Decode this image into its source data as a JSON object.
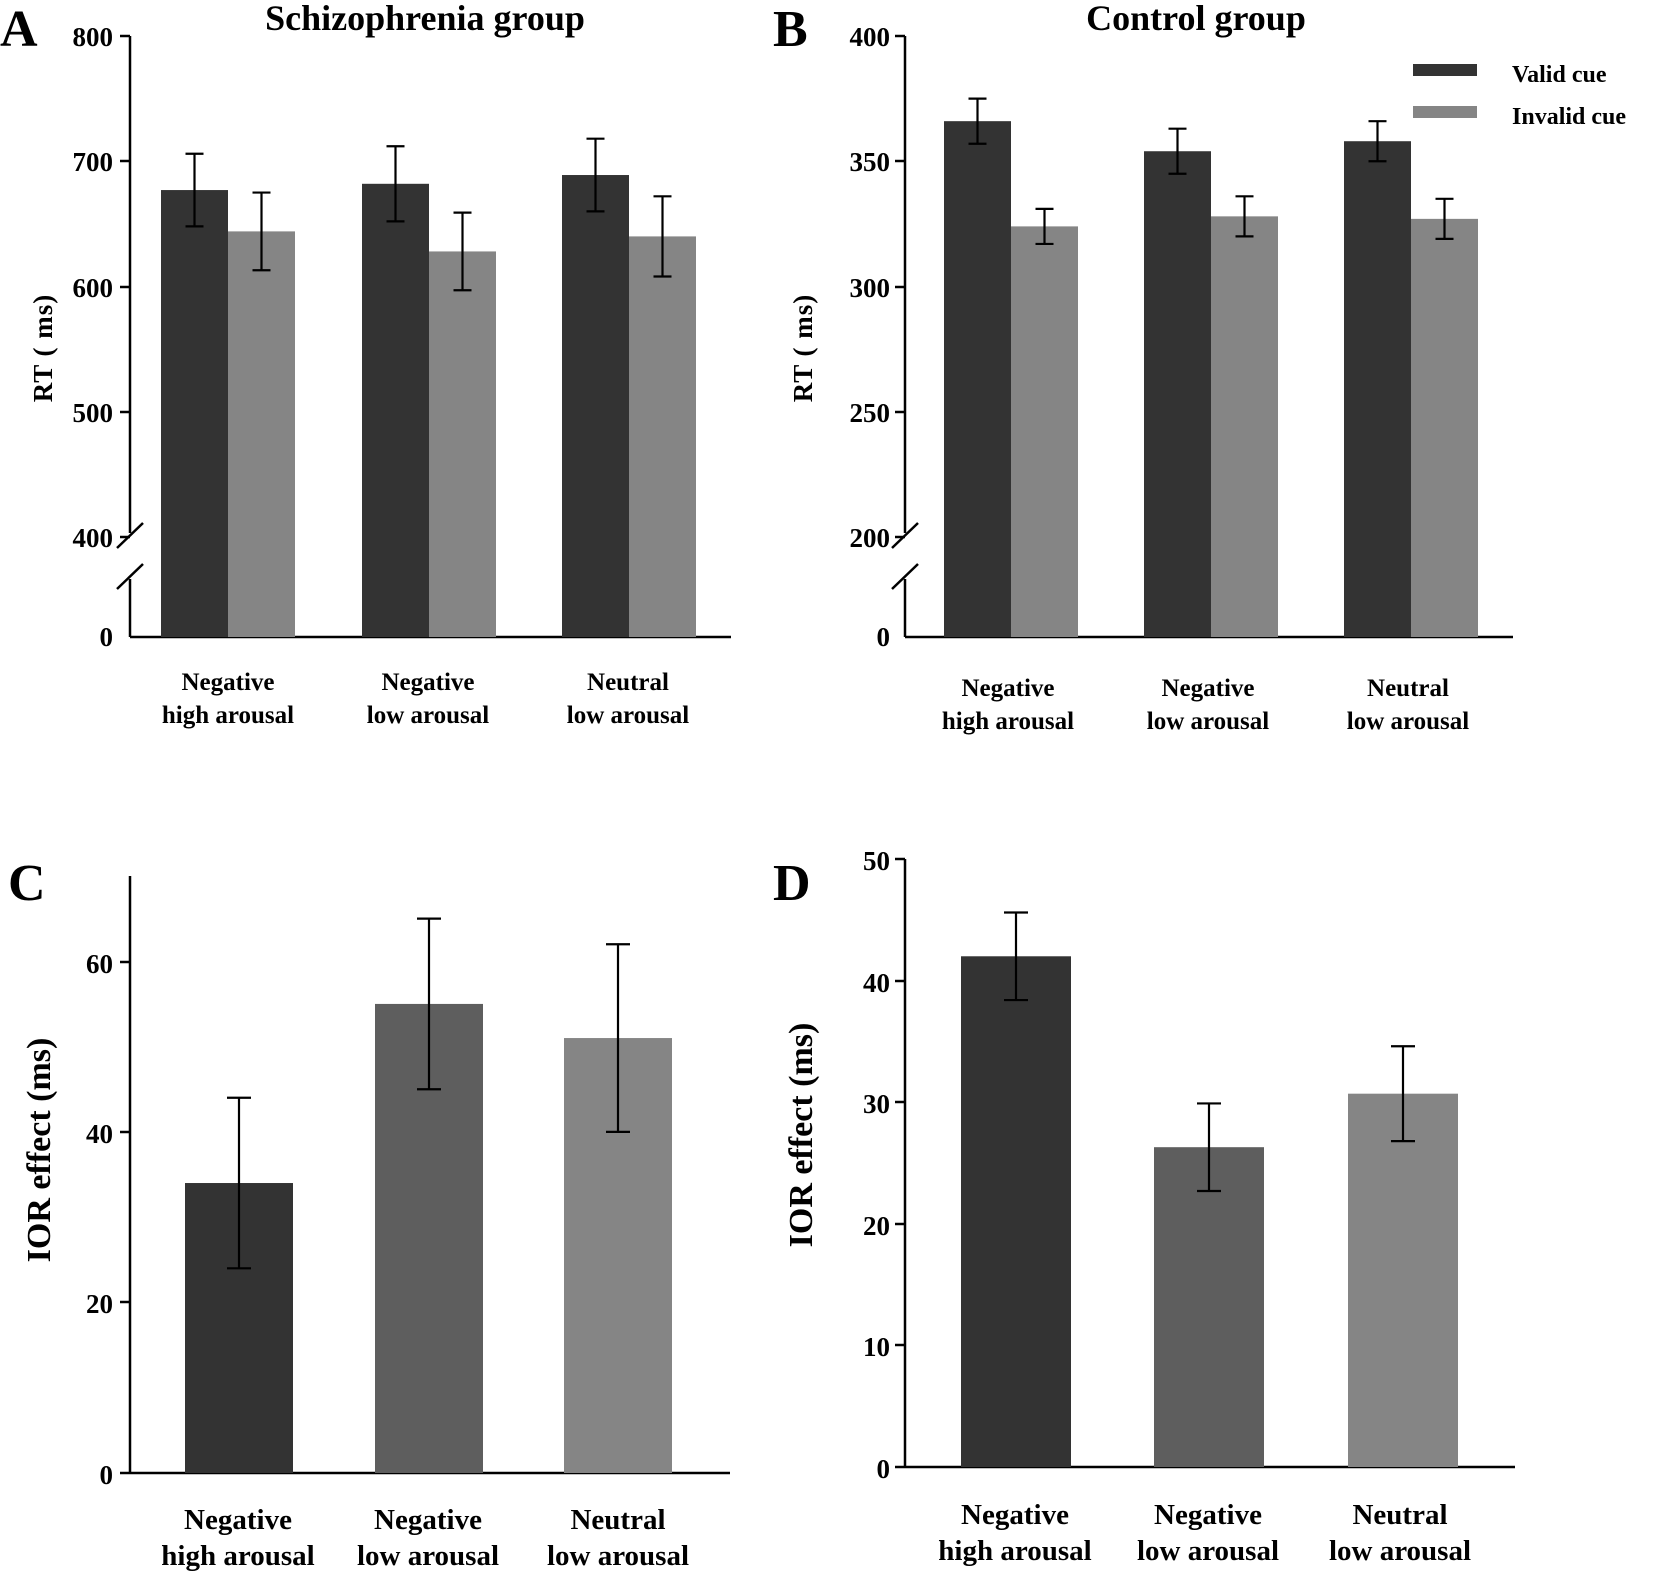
{
  "chart_data": [
    {
      "panel": "A",
      "type": "bar",
      "title": "Schizophrenia group",
      "ylabel": "RT ( ms)",
      "xlabel": "",
      "y_break": [
        0,
        400
      ],
      "ylim": [
        400,
        800
      ],
      "yticks": [
        "0",
        "400",
        "500",
        "600",
        "700",
        "800"
      ],
      "categories": [
        [
          "Negative",
          "high arousal"
        ],
        [
          "Negative",
          "low arousal"
        ],
        [
          "Neutral",
          "low arousal"
        ]
      ],
      "series": [
        {
          "name": "Valid cue",
          "color": "#333333",
          "values": [
            677,
            682,
            689
          ],
          "errors": [
            29,
            30,
            29
          ]
        },
        {
          "name": "Invalid cue",
          "color": "#858585",
          "values": [
            644,
            628,
            640
          ],
          "errors": [
            31,
            31,
            32
          ]
        }
      ]
    },
    {
      "panel": "B",
      "type": "bar",
      "title": "Control group",
      "ylabel": "RT ( ms)",
      "xlabel": "",
      "y_break": [
        0,
        200
      ],
      "ylim": [
        200,
        400
      ],
      "yticks": [
        "0",
        "200",
        "250",
        "300",
        "350",
        "400"
      ],
      "legend": {
        "position": "top-right",
        "entries": [
          "Valid cue",
          "Invalid cue"
        ]
      },
      "categories": [
        [
          "Negative",
          "high arousal"
        ],
        [
          "Negative",
          "low arousal"
        ],
        [
          "Neutral",
          "low arousal"
        ]
      ],
      "series": [
        {
          "name": "Valid cue",
          "color": "#333333",
          "values": [
            366,
            354,
            358
          ],
          "errors": [
            9,
            9,
            8
          ]
        },
        {
          "name": "Invalid cue",
          "color": "#858585",
          "values": [
            324,
            328,
            327
          ],
          "errors": [
            7,
            8,
            8
          ]
        }
      ]
    },
    {
      "panel": "C",
      "type": "bar",
      "title": "",
      "ylabel": "IOR effect (ms)",
      "xlabel": "",
      "ylim": [
        0,
        70
      ],
      "yticks": [
        "0",
        "20",
        "40",
        "60"
      ],
      "categories": [
        [
          "Negative",
          "high arousal"
        ],
        [
          "Negative",
          "low arousal"
        ],
        [
          "Neutral",
          "low arousal"
        ]
      ],
      "values": [
        34,
        55,
        51
      ],
      "errors": [
        10,
        10,
        11
      ],
      "colors": [
        "#333333",
        "#5e5e5e",
        "#858585"
      ]
    },
    {
      "panel": "D",
      "type": "bar",
      "title": "",
      "ylabel": "IOR effect (ms)",
      "xlabel": "",
      "ylim": [
        0,
        50
      ],
      "yticks": [
        "0",
        "10",
        "20",
        "30",
        "40",
        "50"
      ],
      "categories": [
        [
          "Negative",
          "high arousal"
        ],
        [
          "Negative",
          "low arousal"
        ],
        [
          "Neutral",
          "low arousal"
        ]
      ],
      "values": [
        42,
        26.3,
        30.7
      ],
      "errors": [
        3.6,
        3.6,
        3.9
      ],
      "colors": [
        "#333333",
        "#5e5e5e",
        "#858585"
      ]
    }
  ]
}
